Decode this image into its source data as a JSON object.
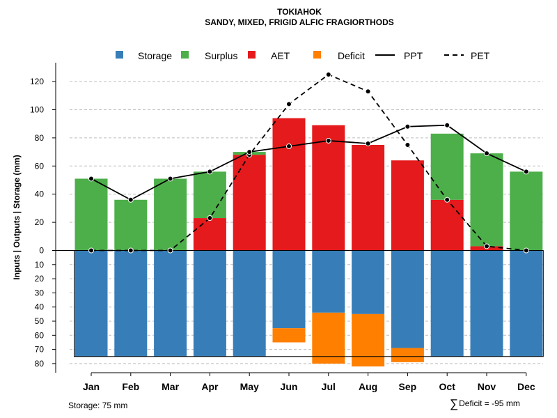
{
  "chart_data": {
    "type": "bar",
    "title": "TOKIAHOK",
    "subtitle": "SANDY, MIXED, FRIGID ALFIC FRAGIORTHODS",
    "ylabel": "Inputs | Outputs | Storage    (mm)",
    "categories": [
      "Jan",
      "Feb",
      "Mar",
      "Apr",
      "May",
      "Jun",
      "Jul",
      "Aug",
      "Sep",
      "Oct",
      "Nov",
      "Dec"
    ],
    "upper_axis": {
      "ylim": [
        0,
        130
      ],
      "ticks": [
        0,
        20,
        40,
        60,
        80,
        100,
        120
      ]
    },
    "lower_axis": {
      "ylim": [
        0,
        80
      ],
      "ticks": [
        0,
        10,
        20,
        30,
        40,
        50,
        60,
        70,
        80
      ]
    },
    "legend": {
      "placement": "top",
      "entries": [
        {
          "label": "Storage",
          "kind": "box",
          "color": "#377EB8"
        },
        {
          "label": "Surplus",
          "kind": "box",
          "color": "#4DAF4A"
        },
        {
          "label": "AET",
          "kind": "box",
          "color": "#E41A1C"
        },
        {
          "label": "Deficit",
          "kind": "box",
          "color": "#FF7F00"
        },
        {
          "label": "PPT",
          "kind": "solid"
        },
        {
          "label": "PET",
          "kind": "dashed"
        }
      ]
    },
    "series": [
      {
        "name": "AET",
        "values": [
          0,
          0,
          0,
          23,
          68,
          94,
          89,
          75,
          64,
          36,
          3,
          0
        ]
      },
      {
        "name": "Surplus",
        "values": [
          51,
          36,
          51,
          33,
          2,
          0,
          0,
          0,
          0,
          47,
          66,
          56
        ]
      },
      {
        "name": "Storage",
        "values": [
          75,
          75,
          75,
          75,
          75,
          55,
          44,
          45,
          69,
          75,
          75,
          75
        ]
      },
      {
        "name": "Deficit",
        "values": [
          0,
          0,
          0,
          0,
          0,
          10,
          36,
          37,
          10,
          0,
          0,
          0
        ]
      },
      {
        "name": "PPT",
        "values": [
          51,
          36,
          51,
          56,
          70,
          74,
          78,
          76,
          88,
          89,
          69,
          56
        ]
      },
      {
        "name": "PET",
        "values": [
          0,
          0,
          0,
          23,
          68,
          104,
          125,
          113,
          75,
          36,
          3,
          0
        ]
      }
    ],
    "storage_capacity": 75,
    "colors": {
      "storage": "#377EB8",
      "surplus": "#4DAF4A",
      "aet": "#E41A1C",
      "deficit": "#FF7F00",
      "grid": "#BEBEBE"
    }
  },
  "notes": {
    "storage": "Storage: 75 mm",
    "deficit_sigma": "∑",
    "deficit": "Deficit = -95 mm"
  }
}
